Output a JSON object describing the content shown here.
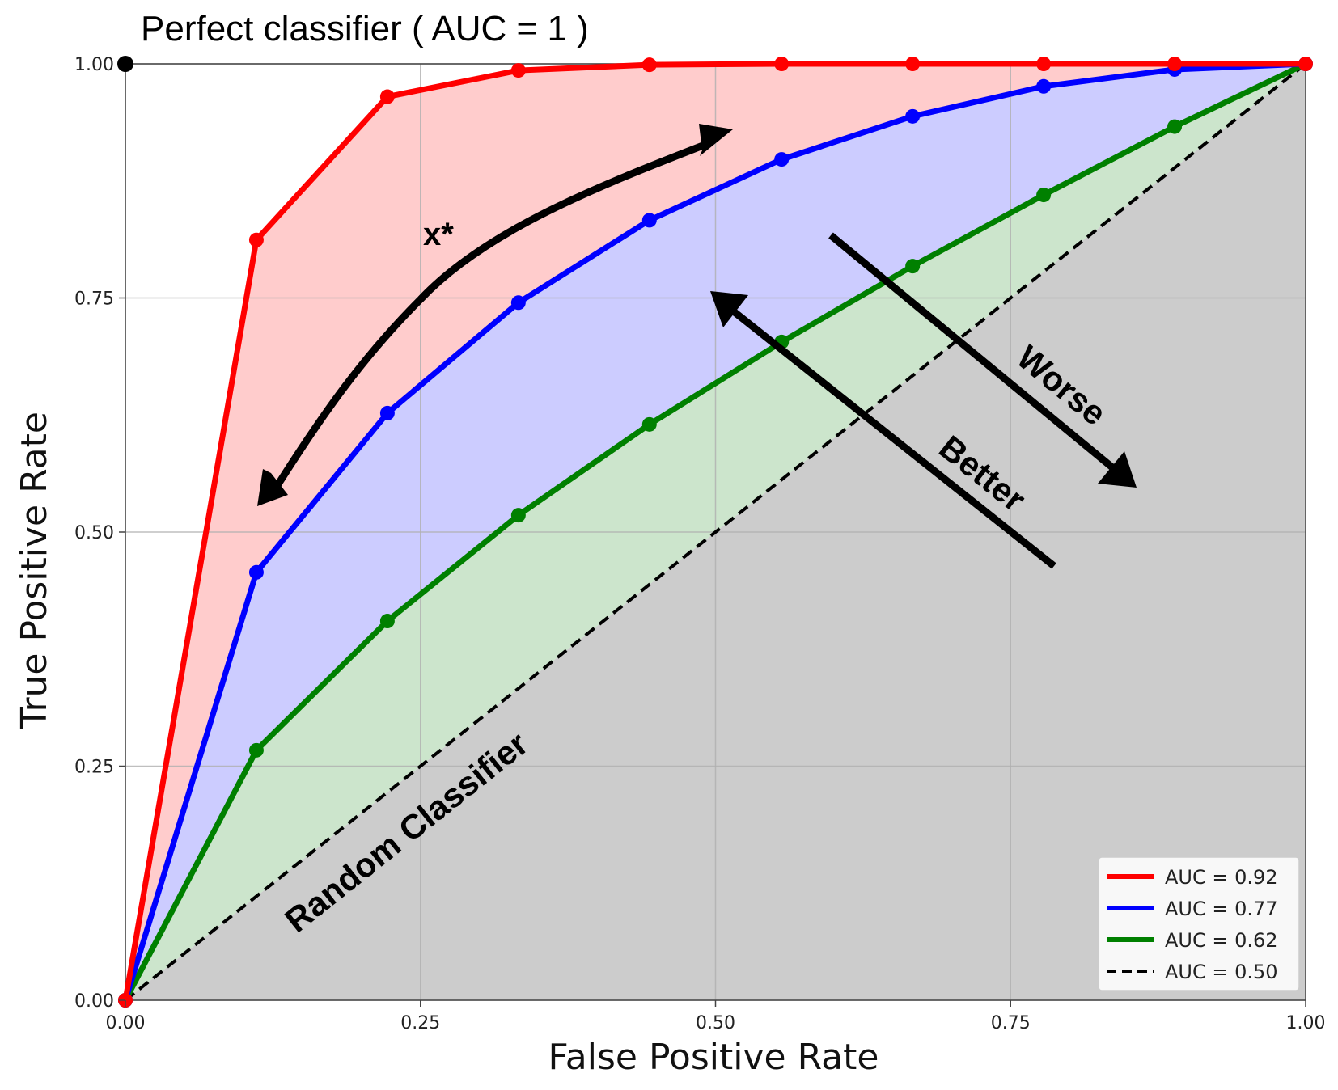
{
  "chart_data": {
    "type": "line",
    "title": "",
    "xlabel": "False Positive Rate",
    "ylabel": "True Positive Rate",
    "xlim": [
      0,
      1
    ],
    "ylim": [
      0,
      1
    ],
    "grid": true,
    "legend_placement": "lower-right",
    "x_ticks": [
      "0.00",
      "0.25",
      "0.50",
      "0.75",
      "1.00"
    ],
    "y_ticks": [
      "0.00",
      "0.25",
      "0.50",
      "0.75",
      "1.00"
    ],
    "x": [
      0,
      0.111,
      0.222,
      0.333,
      0.444,
      0.556,
      0.667,
      0.778,
      0.889,
      1.0
    ],
    "series": [
      {
        "name": "AUC = 0.92",
        "color": "#ff0000",
        "fill": "#ffcccc",
        "values": [
          0,
          0.812,
          0.965,
          0.993,
          0.999,
          1.0,
          1.0,
          1.0,
          1.0,
          1.0
        ]
      },
      {
        "name": "AUC = 0.77",
        "color": "#0000ff",
        "fill": "#ccccff",
        "values": [
          0,
          0.457,
          0.627,
          0.745,
          0.833,
          0.898,
          0.944,
          0.976,
          0.994,
          1.0
        ]
      },
      {
        "name": "AUC = 0.62",
        "color": "#008000",
        "fill": "#cce5cc",
        "values": [
          0,
          0.267,
          0.405,
          0.518,
          0.615,
          0.703,
          0.784,
          0.86,
          0.933,
          1.0
        ]
      },
      {
        "name": "AUC = 0.50",
        "color": "#000000",
        "fill": "#cccccc",
        "dashed": true,
        "values": [
          0,
          0.111,
          0.222,
          0.333,
          0.444,
          0.556,
          0.667,
          0.778,
          0.889,
          1.0
        ]
      }
    ],
    "annotations": {
      "perfect": "Perfect classifier ( AUC = 1 )",
      "x_star": "x*",
      "worse": "Worse",
      "better": "Better",
      "random": "Random Classifier"
    },
    "perfect_point": {
      "x": 0,
      "y": 1
    }
  }
}
